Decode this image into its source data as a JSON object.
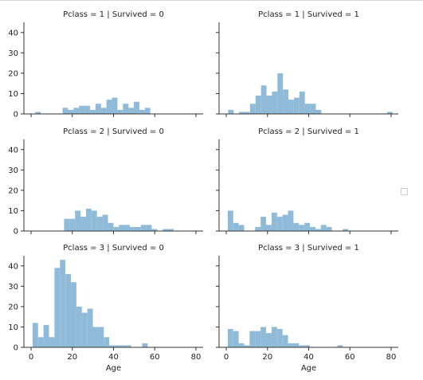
{
  "chart_data": {
    "type": "bar",
    "kind": "facet-grid-histogram",
    "bar_color": "#8fbad8",
    "axis_color": "#333333",
    "bin_width": 2.66,
    "x_axis": {
      "ticks": [
        0,
        20,
        40,
        60,
        80
      ],
      "xlim": [
        -3.5,
        83.5
      ],
      "xlabel": "Age"
    },
    "y_axis": {
      "ticks": [
        0,
        10,
        20,
        30,
        40
      ],
      "ylim": [
        0,
        45
      ]
    },
    "legend": "right, empty",
    "panels": [
      {
        "title": "Pclass = 1 | Survived = 0",
        "bin_start": 2,
        "counts": [
          1,
          0,
          0,
          0,
          0,
          3,
          2,
          3,
          4,
          4,
          2,
          5,
          3,
          7,
          8,
          2,
          5,
          3,
          6,
          2,
          3
        ]
      },
      {
        "title": "Pclass = 1 | Survived = 1",
        "bin_start": 0.9,
        "counts": [
          2,
          0,
          1,
          1,
          5,
          9,
          14,
          9,
          11,
          20,
          12,
          7,
          8,
          11,
          5,
          5,
          2,
          0,
          0,
          0,
          0,
          0,
          0,
          0,
          0,
          0,
          0,
          0,
          0,
          1
        ]
      },
      {
        "title": "Pclass = 2 | Survived = 0",
        "bin_start": 16,
        "counts": [
          6,
          6,
          10,
          7,
          11,
          10,
          7,
          8,
          4,
          2,
          3,
          3,
          2,
          2,
          3,
          3,
          1,
          0,
          1,
          1
        ]
      },
      {
        "title": "Pclass = 2 | Survived = 1",
        "bin_start": 0.7,
        "counts": [
          10,
          4,
          3,
          0,
          0,
          2,
          7,
          3,
          9,
          7,
          8,
          10,
          4,
          3,
          4,
          2,
          1,
          3,
          2,
          0,
          0,
          1
        ]
      },
      {
        "title": "Pclass = 3 | Survived = 0",
        "bin_start": 0.7,
        "counts": [
          12,
          5,
          11,
          5,
          39,
          43,
          36,
          32,
          20,
          17,
          19,
          10,
          10,
          5,
          1,
          1,
          1,
          1,
          0,
          0,
          2
        ]
      },
      {
        "title": "Pclass = 3 | Survived = 1",
        "bin_start": 0.7,
        "counts": [
          9,
          8,
          2,
          1,
          8,
          8,
          10,
          7,
          10,
          9,
          6,
          2,
          2,
          1,
          1,
          0,
          0,
          0,
          0,
          0,
          1
        ]
      }
    ]
  }
}
